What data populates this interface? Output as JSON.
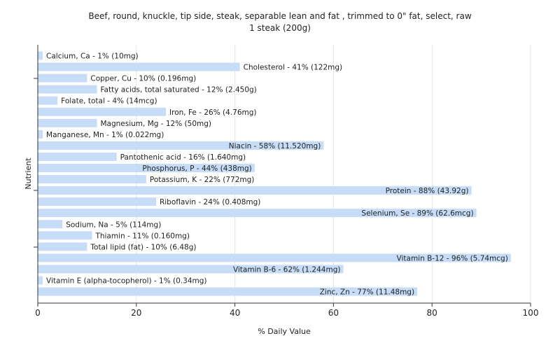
{
  "chart_data": {
    "type": "bar",
    "orientation": "horizontal",
    "title": "Beef, round, knuckle, tip side, steak, separable lean and fat , trimmed to 0\" fat, select, raw",
    "subtitle": "1 steak (200g)",
    "xlabel": "% Daily Value",
    "ylabel": "Nutrient",
    "xlim": [
      0,
      100
    ],
    "xticks": [
      0,
      20,
      40,
      60,
      80,
      100
    ],
    "grid": true,
    "bar_color": "#c6dcf7",
    "categories": [
      "Calcium, Ca - 1% (10mg)",
      "Cholesterol - 41% (122mg)",
      "Copper, Cu - 10% (0.196mg)",
      "Fatty acids, total saturated - 12% (2.450g)",
      "Folate, total - 4% (14mcg)",
      "Iron, Fe - 26% (4.76mg)",
      "Magnesium, Mg - 12% (50mg)",
      "Manganese, Mn - 1% (0.022mg)",
      "Niacin - 58% (11.520mg)",
      "Pantothenic acid - 16% (1.640mg)",
      "Phosphorus, P - 44% (438mg)",
      "Potassium, K - 22% (772mg)",
      "Protein - 88% (43.92g)",
      "Riboflavin - 24% (0.408mg)",
      "Selenium, Se - 89% (62.6mcg)",
      "Sodium, Na - 5% (114mg)",
      "Thiamin - 11% (0.160mg)",
      "Total lipid (fat) - 10% (6.48g)",
      "Vitamin B-12 - 96% (5.74mcg)",
      "Vitamin B-6 - 62% (1.244mg)",
      "Vitamin E (alpha-tocopherol) - 1% (0.34mg)",
      "Zinc, Zn - 77% (11.48mg)"
    ],
    "values": [
      1,
      41,
      10,
      12,
      4,
      26,
      12,
      1,
      58,
      16,
      44,
      22,
      88,
      24,
      89,
      5,
      11,
      10,
      96,
      62,
      1,
      77
    ]
  }
}
